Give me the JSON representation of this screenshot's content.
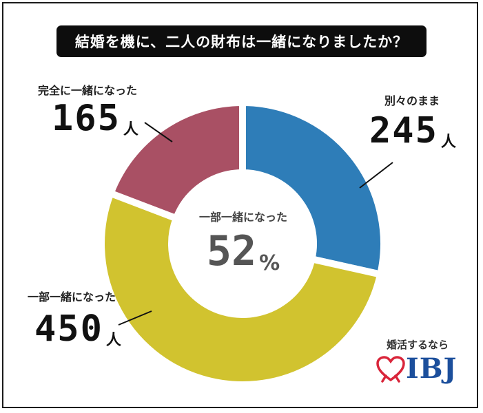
{
  "title": "結婚を機に、二人の財布は一緒になりましたか？",
  "chart_data": {
    "type": "pie",
    "donut": true,
    "unit": "人",
    "slices": [
      {
        "label": "別々のまま",
        "value": 245,
        "color": "#2e7db8"
      },
      {
        "label": "一部一緒になった",
        "value": 450,
        "color": "#d1c32f"
      },
      {
        "label": "完全に一緒になった",
        "value": 165,
        "color": "#a95064"
      }
    ],
    "center": {
      "label": "一部一緒になった",
      "value": "52",
      "unit": "%"
    }
  },
  "brand": {
    "tagline": "婚活するなら",
    "logo": "IBJ",
    "logo_color": "#1c4f9c",
    "heart_color": "#d9253a"
  }
}
